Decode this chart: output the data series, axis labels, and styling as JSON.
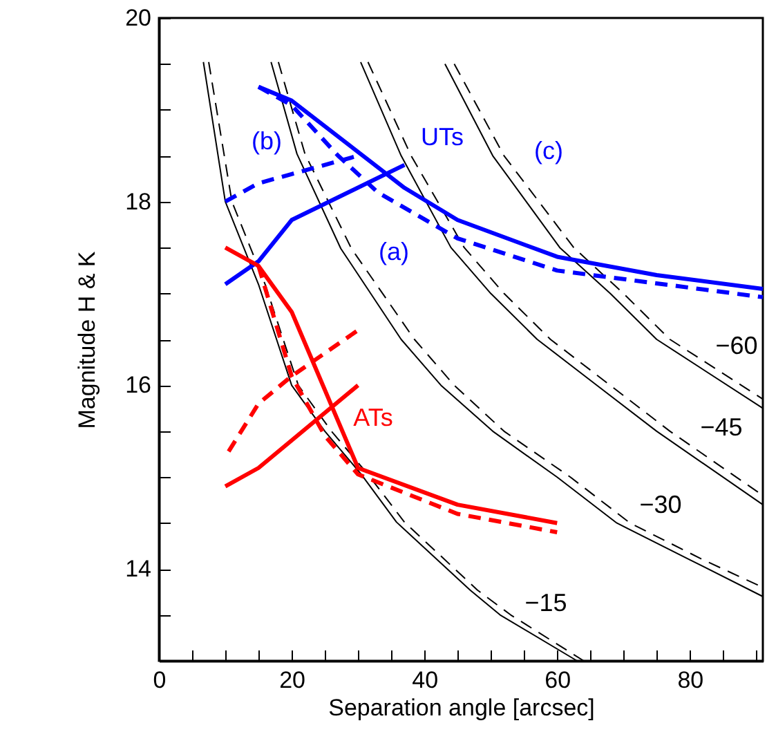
{
  "chart_data": {
    "type": "line",
    "xlabel": "Separation angle [arcsec]",
    "ylabel": "Magnitude H & K",
    "xlim": [
      0,
      91
    ],
    "ylim": [
      13,
      20
    ],
    "xticks": [
      0,
      {
        "value": 5,
        "label": null
      },
      {
        "value": 10,
        "label": null
      },
      {
        "value": 15,
        "label": null
      },
      20,
      {
        "value": 25,
        "label": null
      },
      {
        "value": 30,
        "label": null
      },
      {
        "value": 35,
        "label": null
      },
      40,
      {
        "value": 45,
        "label": null
      },
      {
        "value": 50,
        "label": null
      },
      {
        "value": 55,
        "label": null
      },
      60,
      {
        "value": 65,
        "label": null
      },
      {
        "value": 70,
        "label": null
      },
      {
        "value": 75,
        "label": null
      },
      80,
      {
        "value": 85,
        "label": null
      },
      {
        "value": 90,
        "label": null
      }
    ],
    "yticks": [
      {
        "value": 13.5,
        "label": null
      },
      14,
      {
        "value": 14.5,
        "label": null
      },
      {
        "value": 15,
        "label": null
      },
      {
        "value": 15.5,
        "label": null
      },
      16,
      {
        "value": 16.5,
        "label": null
      },
      {
        "value": 17,
        "label": null
      },
      {
        "value": 17.5,
        "label": null
      },
      18,
      {
        "value": 18.5,
        "label": null
      },
      {
        "value": 19,
        "label": null
      },
      {
        "value": 19.5,
        "label": null
      },
      20
    ],
    "grid": false,
    "marker": "none",
    "series": [
      {
        "color": "#000000",
        "line_style": "solid",
        "x": [
          6.7,
          10,
          15,
          20,
          25,
          30.5,
          35.8,
          46.9,
          51.4,
          63
        ],
        "values": [
          19.52,
          18,
          17.1,
          16,
          15.5,
          15.03,
          14.51,
          13.77,
          13.5,
          13
        ]
      },
      {
        "color": "#000000",
        "line_style": "dashed",
        "x": [
          7.5,
          11,
          16,
          21,
          26,
          31.5,
          37,
          48,
          53,
          64
        ],
        "values": [
          19.52,
          18,
          17.1,
          16,
          15.5,
          15.03,
          14.51,
          13.77,
          13.5,
          13
        ]
      },
      {
        "color": "#000000",
        "line_style": "solid",
        "x": [
          16.9,
          20.8,
          27.4,
          36.5,
          42.5,
          50.3,
          60,
          69,
          80,
          91
        ],
        "values": [
          19.52,
          18.52,
          17.49,
          16.5,
          16,
          15.5,
          15,
          14.5,
          14.1,
          13.7
        ]
      },
      {
        "color": "#000000",
        "line_style": "dashed",
        "x": [
          18,
          22,
          29,
          38.5,
          44.5,
          52,
          62,
          71,
          82,
          91
        ],
        "values": [
          19.52,
          18.52,
          17.49,
          16.5,
          16,
          15.5,
          15,
          14.5,
          14.1,
          13.8
        ]
      },
      {
        "color": "#000000",
        "line_style": "solid",
        "x": [
          30.4,
          36.5,
          44,
          50,
          57,
          66,
          75,
          91
        ],
        "values": [
          19.52,
          18.5,
          17.5,
          17,
          16.5,
          16,
          15.5,
          14.7
        ]
      },
      {
        "color": "#000000",
        "line_style": "dashed",
        "x": [
          31.5,
          38,
          46,
          52,
          59,
          68,
          77,
          91
        ],
        "values": [
          19.52,
          18.5,
          17.5,
          17,
          16.5,
          16,
          15.5,
          14.8
        ]
      },
      {
        "color": "#000000",
        "line_style": "solid",
        "x": [
          43.1,
          50.3,
          60.4,
          68,
          75,
          91
        ],
        "values": [
          19.5,
          18.5,
          17.5,
          17,
          16.5,
          15.75
        ]
      },
      {
        "color": "#000000",
        "line_style": "dashed",
        "x": [
          44.5,
          52,
          62.5,
          70,
          77,
          91
        ],
        "values": [
          19.5,
          18.5,
          17.5,
          17,
          16.5,
          15.85
        ]
      },
      {
        "color": "#0000ff",
        "line_style": "solid",
        "x": [
          15,
          20,
          37,
          45,
          60,
          75,
          91
        ],
        "values": [
          19.25,
          19.1,
          18.15,
          17.8,
          17.4,
          17.2,
          17.05
        ]
      },
      {
        "color": "#0000ff",
        "line_style": "dashed",
        "x": [
          15,
          20,
          27,
          33,
          45,
          60,
          91
        ],
        "values": [
          19.25,
          19.05,
          18.5,
          18.1,
          17.6,
          17.25,
          16.96
        ]
      },
      {
        "color": "#0000ff",
        "line_style": "solid",
        "x": [
          10,
          15,
          20,
          37
        ],
        "values": [
          17.1,
          17.35,
          17.8,
          18.4
        ]
      },
      {
        "color": "#0000ff",
        "line_style": "dashed",
        "x": [
          10,
          15,
          20,
          30
        ],
        "values": [
          18,
          18.2,
          18.3,
          18.5
        ]
      },
      {
        "color": "#ff0000",
        "line_style": "solid",
        "x": [
          10,
          15,
          20,
          30,
          45,
          60
        ],
        "values": [
          17.5,
          17.3,
          16.8,
          15.1,
          14.7,
          14.5
        ]
      },
      {
        "color": "#ff0000",
        "line_style": "dashed",
        "x": [
          15,
          20,
          25,
          30,
          45,
          60
        ],
        "values": [
          17.3,
          16.1,
          15.45,
          15.03,
          14.6,
          14.4
        ]
      },
      {
        "color": "#ff0000",
        "line_style": "solid",
        "x": [
          10,
          15,
          30
        ],
        "values": [
          14.9,
          15.1,
          16
        ]
      },
      {
        "color": "#ff0000",
        "line_style": "dashed",
        "x": [
          10.5,
          15,
          20,
          30
        ],
        "values": [
          15.28,
          15.8,
          16.1,
          16.6
        ]
      }
    ],
    "annotations": [
      "(b)",
      "UTs",
      "(a)",
      "(c)",
      "ATs",
      "−15",
      "−30",
      "−45",
      "−60"
    ]
  }
}
